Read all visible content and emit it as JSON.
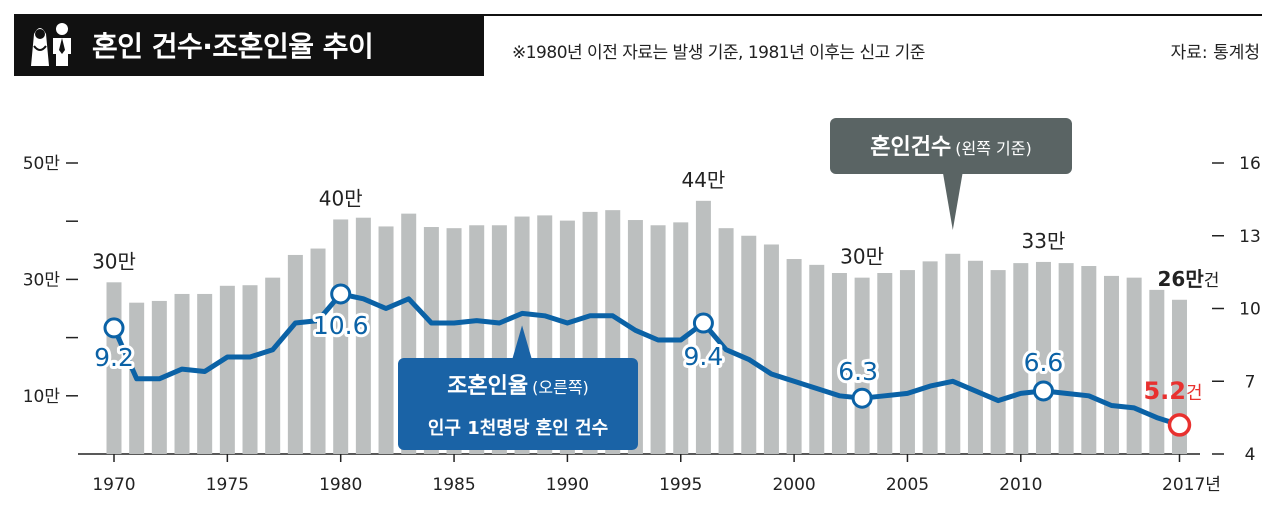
{
  "header": {
    "title": "혼인 건수·조혼인율 추이",
    "note": "※1980년 이전 자료는 발생 기준, 1981년 이후는 신고 기준",
    "source": "자료: 통계청"
  },
  "chart_data": {
    "type": "bar+line",
    "colors": {
      "bar": "#bcbfbf",
      "line": "#0b62a6",
      "highlight": "#e8312f",
      "callout_line": "#1a63a6",
      "callout_bar": "#5a6464"
    },
    "x_ticks": [
      "1970",
      "1975",
      "1980",
      "1985",
      "1990",
      "1995",
      "2000",
      "2005",
      "2010",
      "2017년"
    ],
    "x_tick_years": [
      1970,
      1975,
      1980,
      1985,
      1990,
      1995,
      2000,
      2005,
      2010,
      2017
    ],
    "left_axis": {
      "ticks": [
        "50만",
        "30만",
        "10만"
      ],
      "tick_values": [
        50,
        30,
        10
      ],
      "ylim": [
        0,
        50
      ],
      "minor_ticks": [
        40,
        20
      ]
    },
    "right_axis": {
      "ticks": [
        "16",
        "13",
        "10",
        "7",
        "4"
      ],
      "tick_values": [
        16,
        13,
        10,
        7,
        4
      ],
      "ylim": [
        4,
        16
      ]
    },
    "years": [
      1970,
      1971,
      1972,
      1973,
      1974,
      1975,
      1976,
      1977,
      1978,
      1979,
      1980,
      1981,
      1982,
      1983,
      1984,
      1985,
      1986,
      1987,
      1988,
      1989,
      1990,
      1991,
      1992,
      1993,
      1994,
      1995,
      1996,
      1997,
      1998,
      1999,
      2000,
      2001,
      2002,
      2003,
      2004,
      2005,
      2006,
      2007,
      2008,
      2009,
      2010,
      2011,
      2012,
      2013,
      2014,
      2015,
      2016,
      2017
    ],
    "marriages_man": [
      29.5,
      26.0,
      26.3,
      27.5,
      27.5,
      28.9,
      29.0,
      30.3,
      34.2,
      35.3,
      40.3,
      40.6,
      39.1,
      41.3,
      39.0,
      38.8,
      39.3,
      39.3,
      40.8,
      41.0,
      40.1,
      41.6,
      41.9,
      40.2,
      39.3,
      39.8,
      43.5,
      38.8,
      37.5,
      36.0,
      33.5,
      32.5,
      31.1,
      30.3,
      31.1,
      31.6,
      33.1,
      34.4,
      33.2,
      31.6,
      32.8,
      33.0,
      32.8,
      32.3,
      30.6,
      30.3,
      28.2,
      26.5
    ],
    "crude_rate": [
      9.2,
      7.1,
      7.1,
      7.5,
      7.4,
      8.0,
      8.0,
      8.3,
      9.4,
      9.5,
      10.6,
      10.4,
      10.0,
      10.4,
      9.4,
      9.4,
      9.5,
      9.4,
      9.8,
      9.7,
      9.4,
      9.7,
      9.7,
      9.1,
      8.7,
      8.7,
      9.4,
      8.3,
      7.9,
      7.3,
      7.0,
      6.7,
      6.4,
      6.3,
      6.4,
      6.5,
      6.8,
      7.0,
      6.6,
      6.2,
      6.5,
      6.6,
      6.5,
      6.4,
      6.0,
      5.9,
      5.5,
      5.2
    ],
    "bar_labels": [
      {
        "year": 1970,
        "text": "30만"
      },
      {
        "year": 1980,
        "text": "40만"
      },
      {
        "year": 1996,
        "text": "44만"
      },
      {
        "year": 2003,
        "text": "30만"
      },
      {
        "year": 2011,
        "text": "33만"
      }
    ],
    "bar_label_last": {
      "year": 2017,
      "num": "26만",
      "unit": "건"
    },
    "rate_labels": [
      {
        "year": 1970,
        "text": "9.2"
      },
      {
        "year": 1980,
        "text": "10.6"
      },
      {
        "year": 1996,
        "text": "9.4"
      },
      {
        "year": 2003,
        "text": "6.3"
      },
      {
        "year": 2011,
        "text": "6.6"
      }
    ],
    "rate_label_last": {
      "year": 2017,
      "num": "5.2",
      "unit": "건"
    },
    "callout_rate": {
      "title": "조혼인율",
      "suffix": "(오른쪽)",
      "line2": "인구 1천명당 혼인 건수"
    },
    "callout_marriages": {
      "title": "혼인건수",
      "suffix": "(왼쪽 기준)"
    }
  }
}
